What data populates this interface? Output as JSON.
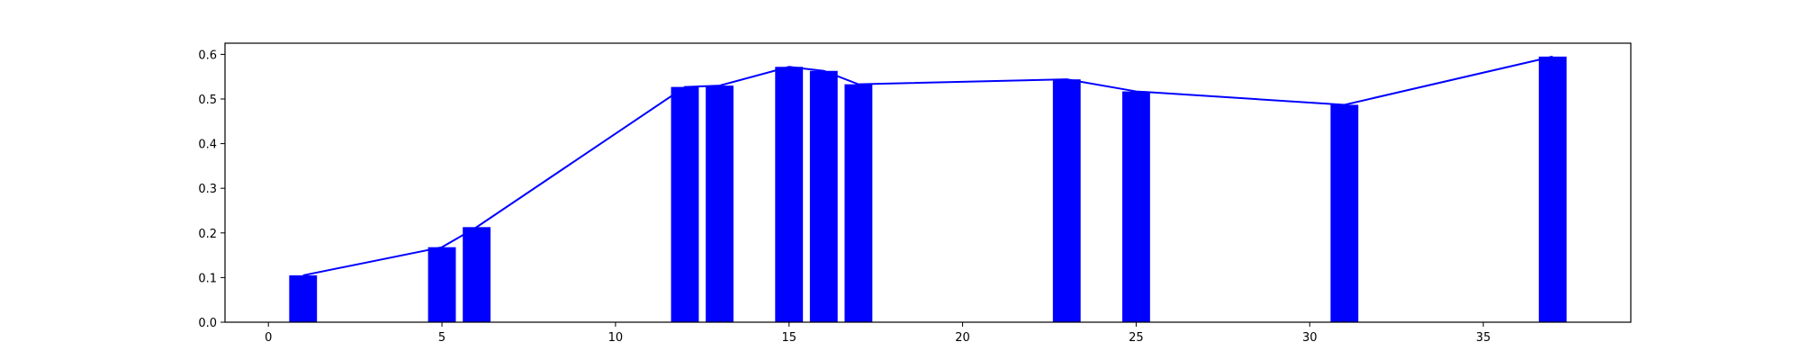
{
  "chart_data": {
    "type": "bar",
    "title": "",
    "xlabel": "",
    "ylabel": "",
    "xlim": [
      -1.25,
      39.25
    ],
    "ylim": [
      0,
      0.625
    ],
    "grid": false,
    "legend": "none",
    "bar_color": "#0000ff",
    "line_color": "#0000ff",
    "x_ticks": [
      0,
      5,
      10,
      15,
      20,
      25,
      30,
      35
    ],
    "x_tick_labels": [
      "0",
      "5",
      "10",
      "15",
      "20",
      "25",
      "30",
      "35"
    ],
    "y_ticks": [
      0.0,
      0.1,
      0.2,
      0.3,
      0.4,
      0.5,
      0.6
    ],
    "y_tick_labels": [
      "0.0",
      "0.1",
      "0.2",
      "0.3",
      "0.4",
      "0.5",
      "0.6"
    ],
    "bar_width": 0.8,
    "series": [
      {
        "kind": "bar",
        "x": [
          1,
          5,
          6,
          12,
          13,
          15,
          16,
          17,
          23,
          25,
          31,
          37
        ],
        "values": [
          0.105,
          0.168,
          0.213,
          0.527,
          0.53,
          0.572,
          0.563,
          0.533,
          0.544,
          0.517,
          0.487,
          0.595
        ]
      },
      {
        "kind": "line",
        "x": [
          1,
          5,
          6,
          12,
          13,
          15,
          16,
          17,
          23,
          25,
          31,
          37
        ],
        "values": [
          0.105,
          0.168,
          0.213,
          0.527,
          0.53,
          0.572,
          0.563,
          0.533,
          0.544,
          0.517,
          0.487,
          0.595
        ]
      }
    ]
  }
}
